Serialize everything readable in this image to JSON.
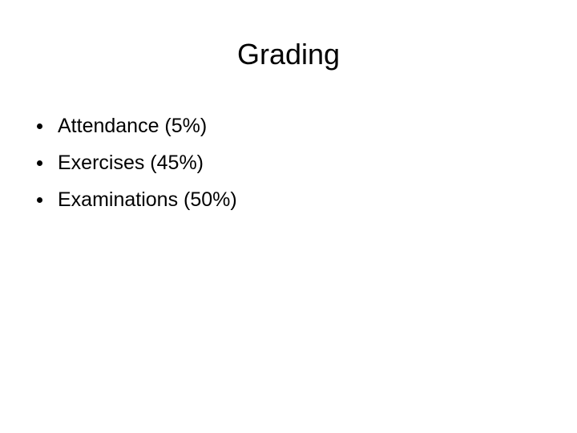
{
  "header": {
    "title": "Grading"
  },
  "bullets": [
    "Attendance (5%)",
    "Exercises (45%)",
    "Examinations (50%)"
  ]
}
